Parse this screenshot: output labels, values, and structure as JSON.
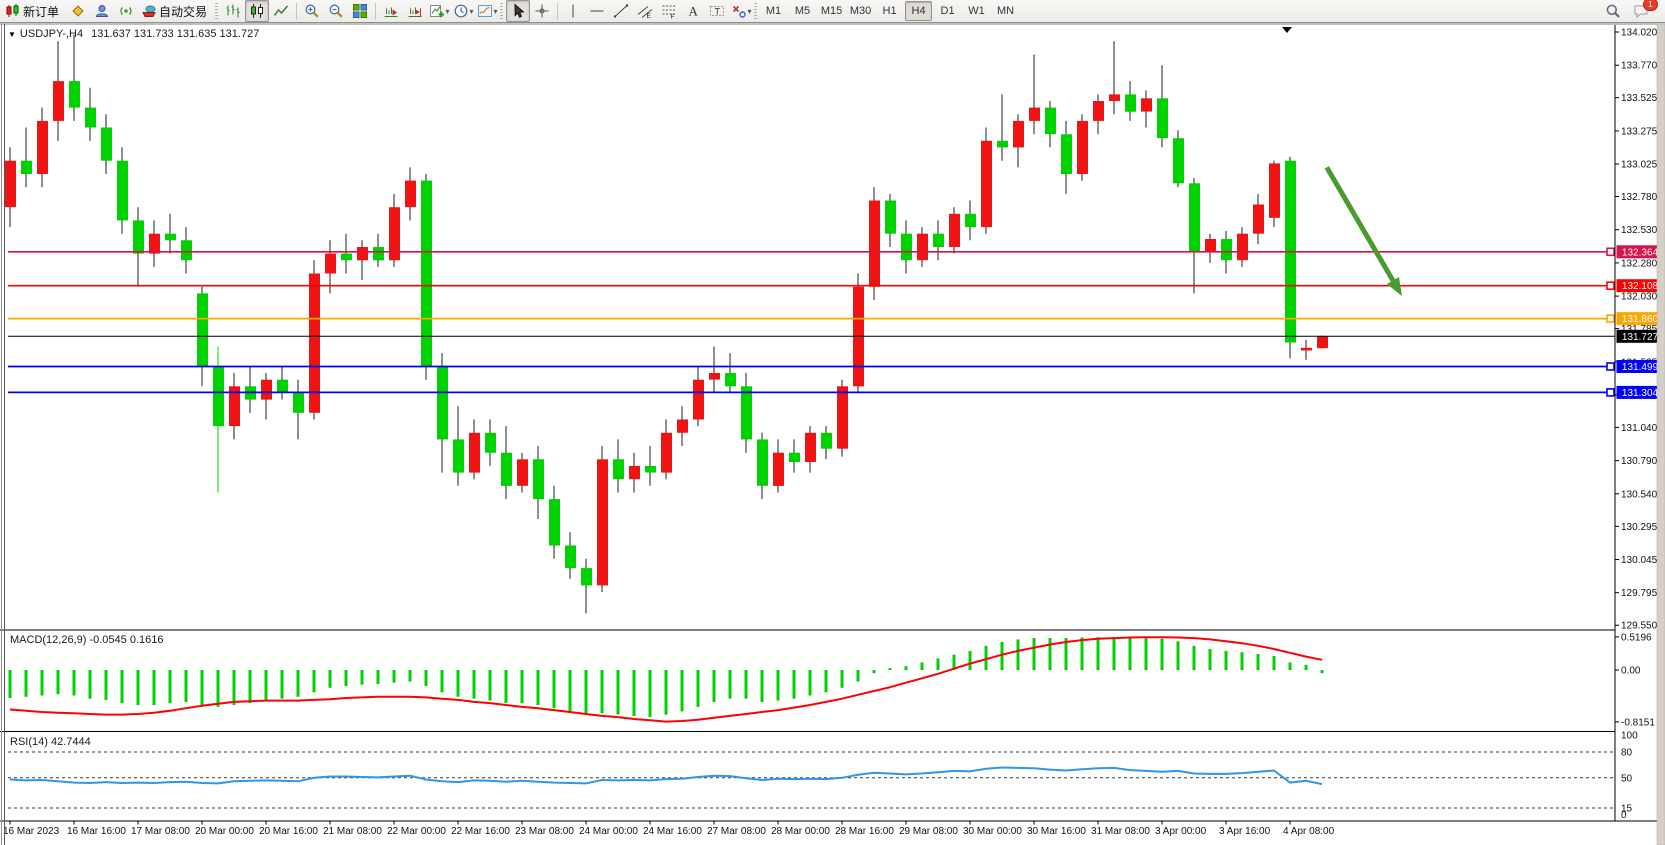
{
  "toolbar": {
    "new_order_label": "新订单",
    "auto_trading_label": "自动交易",
    "timeframes": [
      "M1",
      "M5",
      "M15",
      "M30",
      "H1",
      "H4",
      "D1",
      "W1",
      "MN"
    ],
    "active_timeframe": "H4",
    "chat_badge": "1"
  },
  "chart": {
    "title": {
      "symbol": "USDJPY-,H4",
      "quote": "131.637 131.733 131.635 131.727"
    },
    "price_axis_ticks": [
      "134.020",
      "133.770",
      "133.525",
      "133.275",
      "133.025",
      "132.780",
      "132.530",
      "132.280",
      "132.030",
      "131.785",
      "131.535",
      "131.285",
      "131.040",
      "130.790",
      "130.540",
      "130.295",
      "130.045",
      "129.795",
      "129.550"
    ],
    "levels": [
      {
        "price": 132.364,
        "label": "132.364",
        "color": "#d6134b"
      },
      {
        "price": 132.108,
        "label": "132.108",
        "color": "#fe0000"
      },
      {
        "price": 131.86,
        "label": "131.860",
        "color": "#ffa500"
      },
      {
        "price": 131.499,
        "label": "131.499",
        "color": "#0000f8"
      },
      {
        "price": 131.304,
        "label": "131.304",
        "color": "#0000f8"
      }
    ],
    "current_price": {
      "price": 131.727,
      "label": "131.727",
      "color": "#000000"
    },
    "macd_label": "MACD(12,26,9) -0.0545 0.1616",
    "macd_ticks": [
      "0.5196",
      "0.00",
      "-0.8151"
    ],
    "rsi_label": "RSI(14) 42.7444",
    "rsi_ticks": [
      "100",
      "80",
      "50",
      "15",
      "0"
    ],
    "date_axis": [
      "16 Mar 2023",
      "16 Mar 16:00",
      "17 Mar 08:00",
      "20 Mar 00:00",
      "20 Mar 16:00",
      "21 Mar 08:00",
      "22 Mar 00:00",
      "22 Mar 16:00",
      "23 Mar 08:00",
      "24 Mar 00:00",
      "24 Mar 16:00",
      "27 Mar 08:00",
      "28 Mar 00:00",
      "28 Mar 16:00",
      "29 Mar 08:00",
      "30 Mar 00:00",
      "30 Mar 16:00",
      "31 Mar 08:00",
      "3 Apr 00:00",
      "3 Apr 16:00",
      "4 Apr 08:00"
    ]
  },
  "chart_data": [
    {
      "type": "candlestick",
      "symbol": "USDJPY-",
      "timeframe": "H4",
      "ylim": [
        129.55,
        134.02
      ],
      "up_color": "#ee1414",
      "down_color": "#00d100",
      "wick_color": "#1c1c1c",
      "x_tick_every": 4,
      "x_tick_labels": [
        "16 Mar 2023",
        "16 Mar 16:00",
        "17 Mar 08:00",
        "20 Mar 00:00",
        "20 Mar 16:00",
        "21 Mar 08:00",
        "22 Mar 00:00",
        "22 Mar 16:00",
        "23 Mar 08:00",
        "24 Mar 00:00",
        "24 Mar 16:00",
        "27 Mar 08:00",
        "28 Mar 00:00",
        "28 Mar 16:00",
        "29 Mar 08:00",
        "30 Mar 00:00",
        "30 Mar 16:00",
        "31 Mar 08:00",
        "3 Apr 00:00",
        "3 Apr 16:00",
        "4 Apr 08:00"
      ],
      "ohlc": [
        [
          132.7,
          133.15,
          132.55,
          133.05
        ],
        [
          133.05,
          133.3,
          132.85,
          132.95
        ],
        [
          132.95,
          133.45,
          132.85,
          133.35
        ],
        [
          133.35,
          133.95,
          133.2,
          133.65
        ],
        [
          133.65,
          134.0,
          133.35,
          133.45
        ],
        [
          133.45,
          133.6,
          133.2,
          133.3
        ],
        [
          133.3,
          133.4,
          132.95,
          133.05
        ],
        [
          133.05,
          133.15,
          132.5,
          132.6
        ],
        [
          132.6,
          132.7,
          132.1,
          132.35
        ],
        [
          132.35,
          132.6,
          132.25,
          132.5
        ],
        [
          132.5,
          132.65,
          132.35,
          132.45
        ],
        [
          132.45,
          132.55,
          132.2,
          132.3
        ],
        [
          132.05,
          132.1,
          131.35,
          131.5
        ],
        [
          131.5,
          131.65,
          130.55,
          131.05,
          "#00d100"
        ],
        [
          131.05,
          131.45,
          130.95,
          131.35
        ],
        [
          131.35,
          131.5,
          131.15,
          131.25
        ],
        [
          131.25,
          131.45,
          131.1,
          131.4
        ],
        [
          131.4,
          131.5,
          131.25,
          131.3
        ],
        [
          131.3,
          131.4,
          130.95,
          131.15
        ],
        [
          131.15,
          132.3,
          131.1,
          132.2
        ],
        [
          132.2,
          132.45,
          132.05,
          132.35
        ],
        [
          132.35,
          132.5,
          132.2,
          132.3
        ],
        [
          132.3,
          132.45,
          132.15,
          132.4
        ],
        [
          132.4,
          132.5,
          132.25,
          132.3
        ],
        [
          132.3,
          132.8,
          132.25,
          132.7
        ],
        [
          132.7,
          133.0,
          132.6,
          132.9
        ],
        [
          132.9,
          132.95,
          131.4,
          131.5
        ],
        [
          131.5,
          131.6,
          130.7,
          130.95
        ],
        [
          130.95,
          131.2,
          130.6,
          130.7
        ],
        [
          130.7,
          131.1,
          130.65,
          131.0
        ],
        [
          131.0,
          131.1,
          130.75,
          130.85
        ],
        [
          130.85,
          131.05,
          130.5,
          130.6
        ],
        [
          130.6,
          130.85,
          130.55,
          130.8
        ],
        [
          130.8,
          130.9,
          130.35,
          130.5
        ],
        [
          130.5,
          130.6,
          130.05,
          130.15
        ],
        [
          130.15,
          130.25,
          129.9,
          129.98
        ],
        [
          129.98,
          130.05,
          129.64,
          129.85
        ],
        [
          129.85,
          130.9,
          129.8,
          130.8
        ],
        [
          130.8,
          130.95,
          130.55,
          130.65
        ],
        [
          130.65,
          130.85,
          130.55,
          130.75
        ],
        [
          130.75,
          130.9,
          130.6,
          130.7
        ],
        [
          130.7,
          131.1,
          130.65,
          131.0
        ],
        [
          131.0,
          131.2,
          130.9,
          131.1
        ],
        [
          131.1,
          131.5,
          131.05,
          131.4
        ],
        [
          131.4,
          131.65,
          131.3,
          131.45
        ],
        [
          131.45,
          131.6,
          131.3,
          131.35
        ],
        [
          131.35,
          131.45,
          130.85,
          130.95
        ],
        [
          130.95,
          131.0,
          130.5,
          130.6
        ],
        [
          130.6,
          130.95,
          130.55,
          130.85
        ],
        [
          130.85,
          130.95,
          130.7,
          130.78
        ],
        [
          130.78,
          131.05,
          130.7,
          131.0
        ],
        [
          131.0,
          131.05,
          130.8,
          130.88
        ],
        [
          130.88,
          131.4,
          130.82,
          131.35
        ],
        [
          131.35,
          132.2,
          131.3,
          132.1
        ],
        [
          132.1,
          132.85,
          132.0,
          132.75
        ],
        [
          132.75,
          132.8,
          132.4,
          132.5
        ],
        [
          132.5,
          132.6,
          132.2,
          132.3
        ],
        [
          132.3,
          132.55,
          132.25,
          132.5
        ],
        [
          132.5,
          132.6,
          132.3,
          132.4
        ],
        [
          132.4,
          132.7,
          132.35,
          132.65
        ],
        [
          132.65,
          132.75,
          132.45,
          132.55
        ],
        [
          132.55,
          133.3,
          132.5,
          133.2
        ],
        [
          133.2,
          133.55,
          133.05,
          133.15
        ],
        [
          133.15,
          133.4,
          133.0,
          133.35
        ],
        [
          133.35,
          133.85,
          133.25,
          133.45
        ],
        [
          133.45,
          133.5,
          133.15,
          133.25
        ],
        [
          133.25,
          133.35,
          132.8,
          132.95
        ],
        [
          132.95,
          133.4,
          132.9,
          133.35
        ],
        [
          133.35,
          133.55,
          133.25,
          133.5
        ],
        [
          133.5,
          133.95,
          133.4,
          133.55
        ],
        [
          133.55,
          133.65,
          133.35,
          133.42
        ],
        [
          133.42,
          133.58,
          133.3,
          133.52
        ],
        [
          133.52,
          133.77,
          133.15,
          133.22
        ],
        [
          133.22,
          133.28,
          132.85,
          132.88
        ],
        [
          132.88,
          132.92,
          132.05,
          132.36
        ],
        [
          132.36,
          132.5,
          132.28,
          132.46
        ],
        [
          132.46,
          132.52,
          132.2,
          132.3
        ],
        [
          132.3,
          132.55,
          132.25,
          132.5
        ],
        [
          132.5,
          132.8,
          132.42,
          132.72
        ],
        [
          132.62,
          133.05,
          132.55,
          133.03
        ],
        [
          133.05,
          133.08,
          131.56,
          131.68
        ],
        [
          131.62,
          131.7,
          131.55,
          131.64
        ],
        [
          131.637,
          131.733,
          131.635,
          131.727
        ]
      ]
    },
    {
      "type": "bar",
      "name": "MACD(12,26,9)",
      "current_main": -0.0545,
      "current_signal": 0.1616,
      "ylim": [
        -0.8151,
        0.5196
      ],
      "bar_color": "#00d100",
      "signal_color": "#fe0000",
      "values": [
        -0.44,
        -0.42,
        -0.4,
        -0.38,
        -0.4,
        -0.45,
        -0.47,
        -0.52,
        -0.55,
        -0.55,
        -0.52,
        -0.5,
        -0.55,
        -0.58,
        -0.55,
        -0.52,
        -0.48,
        -0.45,
        -0.42,
        -0.35,
        -0.28,
        -0.25,
        -0.23,
        -0.22,
        -0.2,
        -0.18,
        -0.25,
        -0.35,
        -0.42,
        -0.45,
        -0.48,
        -0.52,
        -0.52,
        -0.55,
        -0.6,
        -0.65,
        -0.7,
        -0.68,
        -0.7,
        -0.72,
        -0.74,
        -0.7,
        -0.65,
        -0.58,
        -0.5,
        -0.45,
        -0.45,
        -0.5,
        -0.48,
        -0.45,
        -0.4,
        -0.35,
        -0.28,
        -0.18,
        -0.05,
        0.03,
        0.06,
        0.12,
        0.18,
        0.24,
        0.3,
        0.38,
        0.44,
        0.48,
        0.5,
        0.5,
        0.5,
        0.51,
        0.515,
        0.52,
        0.515,
        0.5,
        0.49,
        0.45,
        0.38,
        0.33,
        0.3,
        0.28,
        0.25,
        0.22,
        0.12,
        0.08,
        -0.05
      ],
      "signal": [
        -0.62,
        -0.64,
        -0.66,
        -0.67,
        -0.68,
        -0.69,
        -0.7,
        -0.7,
        -0.69,
        -0.67,
        -0.64,
        -0.6,
        -0.56,
        -0.53,
        -0.5,
        -0.49,
        -0.48,
        -0.48,
        -0.48,
        -0.47,
        -0.46,
        -0.44,
        -0.43,
        -0.42,
        -0.42,
        -0.42,
        -0.43,
        -0.45,
        -0.47,
        -0.5,
        -0.52,
        -0.55,
        -0.58,
        -0.6,
        -0.63,
        -0.66,
        -0.69,
        -0.72,
        -0.74,
        -0.77,
        -0.79,
        -0.81,
        -0.8,
        -0.78,
        -0.75,
        -0.72,
        -0.69,
        -0.66,
        -0.63,
        -0.59,
        -0.55,
        -0.5,
        -0.45,
        -0.39,
        -0.33,
        -0.27,
        -0.2,
        -0.13,
        -0.06,
        0.02,
        0.1,
        0.17,
        0.24,
        0.3,
        0.35,
        0.4,
        0.44,
        0.47,
        0.49,
        0.5,
        0.51,
        0.515,
        0.515,
        0.51,
        0.5,
        0.48,
        0.45,
        0.42,
        0.38,
        0.33,
        0.27,
        0.21,
        0.16
      ]
    },
    {
      "type": "line",
      "name": "RSI(14)",
      "current": 42.7444,
      "ylim": [
        0,
        100
      ],
      "levels": [
        80,
        50,
        15
      ],
      "line_color": "#2f96e8",
      "values": [
        48,
        47,
        47.5,
        46,
        44.5,
        44,
        45,
        44,
        44.5,
        44,
        45,
        45.5,
        44,
        43.5,
        46,
        46.5,
        47,
        46.5,
        46,
        50,
        51.5,
        51.5,
        51,
        50.5,
        51.5,
        52.5,
        48,
        46,
        45,
        47,
        46.5,
        45.5,
        46.5,
        45.5,
        44.5,
        44,
        43.5,
        47.5,
        47,
        47.5,
        47,
        48.5,
        49,
        51,
        52.5,
        52,
        49.5,
        47.5,
        49,
        48.5,
        49,
        48.5,
        50,
        53.5,
        56,
        55,
        54,
        55,
        56.5,
        58,
        57.5,
        60.5,
        62,
        61.5,
        61,
        59.5,
        58.5,
        60,
        61,
        61.5,
        59,
        58,
        57,
        58,
        55,
        54.5,
        54.5,
        55.5,
        57,
        58.5,
        44.5,
        46.5,
        42.74
      ]
    }
  ],
  "annotations": [
    {
      "type": "arrow",
      "bar_from": 82.3,
      "price_from": 133.0,
      "bar_to": 87.0,
      "price_to": 132.03,
      "color": "#4a9b2e"
    }
  ]
}
